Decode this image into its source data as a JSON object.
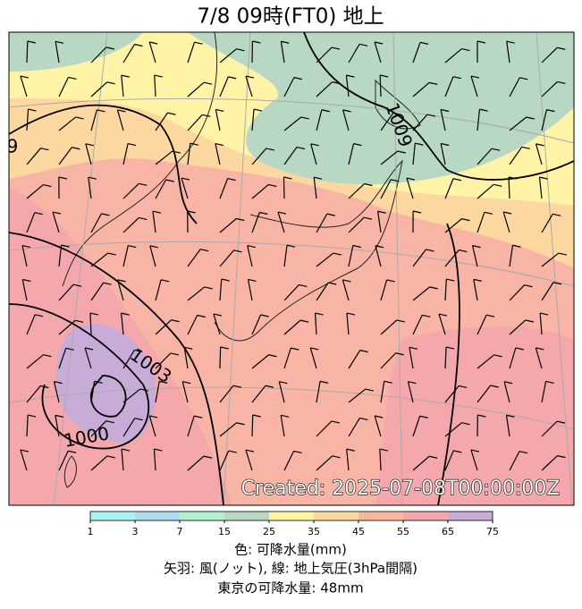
{
  "title": "7/8  09時(FT0)     地上",
  "map": {
    "contour_labels": [
      "1009",
      "1003",
      "1000",
      "9"
    ],
    "created": "Created: 2025-07-08T00:00:00Z"
  },
  "colorbar": {
    "ticks": [
      1,
      3,
      7,
      15,
      25,
      35,
      45,
      55,
      65,
      75
    ],
    "colors": [
      "#a8f4f4",
      "#b0dcf0",
      "#b4f0cc",
      "#b8d8c4",
      "#fff4a6",
      "#fcd8a0",
      "#f8b8a0",
      "#f4a8ac",
      "#c8acd8"
    ]
  },
  "captions": [
    "色: 可降水量(mm)",
    "矢羽: 風(ノット),  線: 地上気圧(3hPa間隔)",
    "東京の可降水量: 48mm"
  ]
}
